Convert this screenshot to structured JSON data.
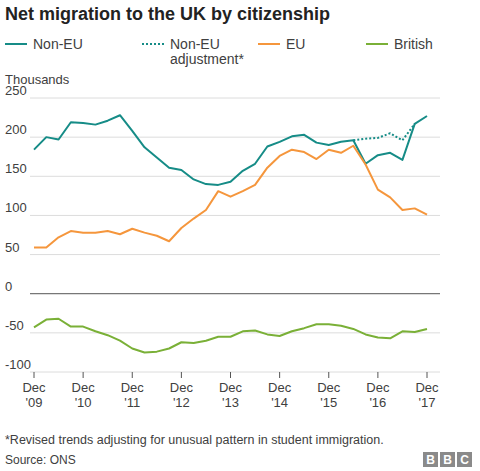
{
  "chart_data": {
    "type": "line",
    "title": "Net migration to the UK by citizenship",
    "y_label": "Thousands",
    "footnote": "*Revised trends adjusting for unusual pattern in student immigration.",
    "source": "Source: ONS",
    "logo": "BBC",
    "categories": [
      "Dec '09",
      null,
      null,
      null,
      "Dec '10",
      null,
      null,
      null,
      "Dec '11",
      null,
      null,
      null,
      "Dec '12",
      null,
      null,
      null,
      "Dec '13",
      null,
      null,
      null,
      "Dec '14",
      null,
      null,
      null,
      "Dec '15",
      null,
      null,
      null,
      "Dec '16",
      null,
      null,
      null,
      "Dec '17"
    ],
    "ylim": [
      -100,
      250
    ],
    "yticks": [
      -100,
      -50,
      0,
      50,
      100,
      150,
      200,
      250
    ],
    "grid": true,
    "legend": "top",
    "series": [
      {
        "name": "Non-EU",
        "color": "#168c87",
        "line_style": "solid",
        "values": [
          184,
          200,
          197,
          219,
          218,
          216,
          221,
          228,
          208,
          187,
          174,
          161,
          158,
          146,
          140,
          139,
          143,
          157,
          166,
          188,
          194,
          201,
          203,
          193,
          190,
          194,
          196,
          166,
          177,
          180,
          171,
          217,
          227
        ]
      },
      {
        "name": "Non-EU adjustment*",
        "color": "#168c87",
        "line_style": "dotted",
        "values": [
          null,
          null,
          null,
          null,
          null,
          null,
          null,
          null,
          null,
          null,
          null,
          null,
          null,
          null,
          null,
          null,
          null,
          null,
          null,
          null,
          null,
          null,
          null,
          null,
          null,
          null,
          196,
          198,
          199,
          205,
          196,
          217,
          null
        ]
      },
      {
        "name": "EU",
        "color": "#f5963c",
        "line_style": "solid",
        "values": [
          59,
          59,
          72,
          80,
          78,
          78,
          80,
          76,
          83,
          78,
          74,
          67,
          84,
          96,
          107,
          131,
          124,
          131,
          139,
          161,
          176,
          184,
          181,
          172,
          184,
          180,
          189,
          165,
          133,
          123,
          107,
          109,
          101
        ]
      },
      {
        "name": "British",
        "color": "#7ab037",
        "line_style": "solid",
        "values": [
          -43,
          -33,
          -32,
          -42,
          -42,
          -48,
          -53,
          -60,
          -70,
          -75,
          -74,
          -70,
          -62,
          -63,
          -60,
          -55,
          -55,
          -48,
          -47,
          -52,
          -54,
          -48,
          -44,
          -39,
          -39,
          -41,
          -45,
          -52,
          -56,
          -57,
          -48,
          -49,
          -45
        ]
      }
    ]
  }
}
